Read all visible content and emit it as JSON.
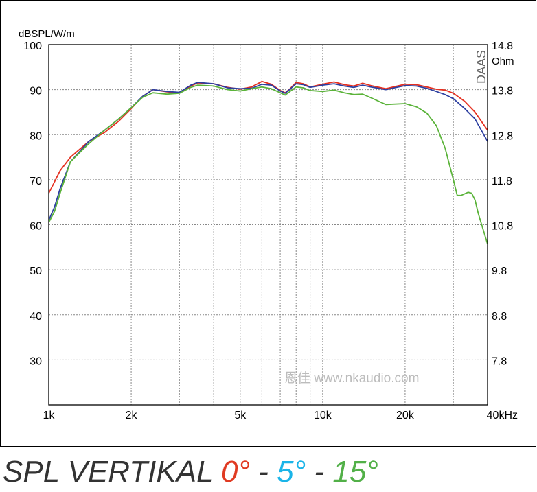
{
  "chart_data": {
    "type": "line",
    "title": "",
    "ylabel": "dBSPL/W/m",
    "xlabel": "kHz",
    "xscale": "log",
    "xlim": [
      1000,
      40000
    ],
    "ylim": [
      20,
      100
    ],
    "y2label": "Ohm",
    "y2lim": [
      8.8,
      14.8
    ],
    "x_ticks": [
      {
        "value": 1000,
        "label": "1k"
      },
      {
        "value": 2000,
        "label": "2k"
      },
      {
        "value": 5000,
        "label": "5k"
      },
      {
        "value": 10000,
        "label": "10k"
      },
      {
        "value": 20000,
        "label": "20k"
      },
      {
        "value": 40000,
        "label": "40kHz"
      }
    ],
    "y_ticks": [
      "100",
      "90",
      "80",
      "70",
      "60",
      "50",
      "40",
      "30"
    ],
    "y2_ticks": [
      "14.8",
      "13.8",
      "12.8",
      "11.8",
      "10.8",
      "9.8",
      "8.8",
      "7.8"
    ],
    "grid": true,
    "colors": {
      "red": "#e53020",
      "blue": "#2d3fa0",
      "green": "#5bb33a",
      "grid": "#888888"
    },
    "watermark": "恩佳 www.nkaudio.com",
    "brand": "DAAS",
    "series": [
      {
        "color": "#e53020",
        "x": [
          1000,
          1100,
          1200,
          1400,
          1600,
          1800,
          2000,
          2200,
          2400,
          2700,
          3000,
          3300,
          3500,
          4000,
          4500,
          5000,
          5500,
          6000,
          6500,
          7000,
          7300,
          7600,
          8000,
          8500,
          9000,
          10000,
          11000,
          12000,
          13000,
          14000,
          15000,
          17000,
          20000,
          22000,
          24000,
          26000,
          28000,
          30000,
          33000,
          36000,
          40000
        ],
        "y": [
          67,
          72,
          75,
          78.5,
          80.5,
          83,
          85.8,
          88.5,
          90,
          89.5,
          89.3,
          90.8,
          91.5,
          91.3,
          90.5,
          90.1,
          90.6,
          91.8,
          91.2,
          89.8,
          89.3,
          90.2,
          91.6,
          91.3,
          90.6,
          91.2,
          91.7,
          91.1,
          90.8,
          91.4,
          90.9,
          90.2,
          91.2,
          91.1,
          90.6,
          90.1,
          89.9,
          89.2,
          87.4,
          85,
          81
        ]
      },
      {
        "color": "#2d3fa0",
        "x": [
          1000,
          1050,
          1100,
          1200,
          1400,
          1600,
          1800,
          2000,
          2200,
          2400,
          2700,
          3000,
          3300,
          3500,
          4000,
          4500,
          5000,
          5500,
          6000,
          6500,
          7000,
          7300,
          7600,
          8000,
          8500,
          9000,
          10000,
          11000,
          12000,
          13000,
          14000,
          15000,
          17000,
          20000,
          22000,
          24000,
          26000,
          28000,
          30000,
          33000,
          36000,
          40000
        ],
        "y": [
          61,
          64,
          68,
          74,
          78.5,
          81,
          83.5,
          86,
          88.5,
          90,
          89.6,
          89.4,
          91,
          91.6,
          91.3,
          90.4,
          90.2,
          90.3,
          91.2,
          91,
          89.7,
          89.2,
          90.1,
          91.3,
          91.1,
          90.5,
          91,
          91.3,
          90.8,
          90.5,
          91,
          90.6,
          90,
          90.9,
          90.8,
          90.3,
          89.6,
          88.9,
          88,
          85.8,
          83.5,
          78.5
        ]
      },
      {
        "color": "#5bb33a",
        "x": [
          1000,
          1050,
          1100,
          1200,
          1400,
          1600,
          1800,
          2000,
          2200,
          2400,
          2700,
          3000,
          3300,
          3500,
          4000,
          4500,
          5000,
          5500,
          6000,
          6500,
          7000,
          7300,
          7600,
          8000,
          8500,
          9000,
          10000,
          11000,
          12000,
          13000,
          14000,
          15000,
          17000,
          20000,
          22000,
          24000,
          26000,
          28000,
          30000,
          31000,
          32000,
          34000,
          35000,
          36000,
          37000,
          40000
        ],
        "y": [
          60.5,
          63,
          67,
          74,
          78,
          81,
          83.5,
          86,
          88.3,
          89.3,
          89,
          89.2,
          90.5,
          91,
          90.8,
          90,
          89.7,
          90.2,
          90.6,
          90.2,
          89.3,
          88.8,
          89.6,
          90.6,
          90.4,
          89.8,
          89.6,
          89.9,
          89.3,
          88.9,
          89,
          88.2,
          86.7,
          86.9,
          86.2,
          84.8,
          82,
          77,
          70,
          66.5,
          66.5,
          67.2,
          67,
          65.5,
          62.5,
          55.7
        ]
      }
    ]
  },
  "caption": {
    "prefix": "SPL VERTIKAL ",
    "a0": "0°",
    "sep1": " - ",
    "a5": "5°",
    "sep2": " - ",
    "a15": "15°",
    "color_prefix": "#333333",
    "color_a0": "#e03a22",
    "color_a5": "#1ab4e8",
    "color_a15": "#52b048"
  }
}
